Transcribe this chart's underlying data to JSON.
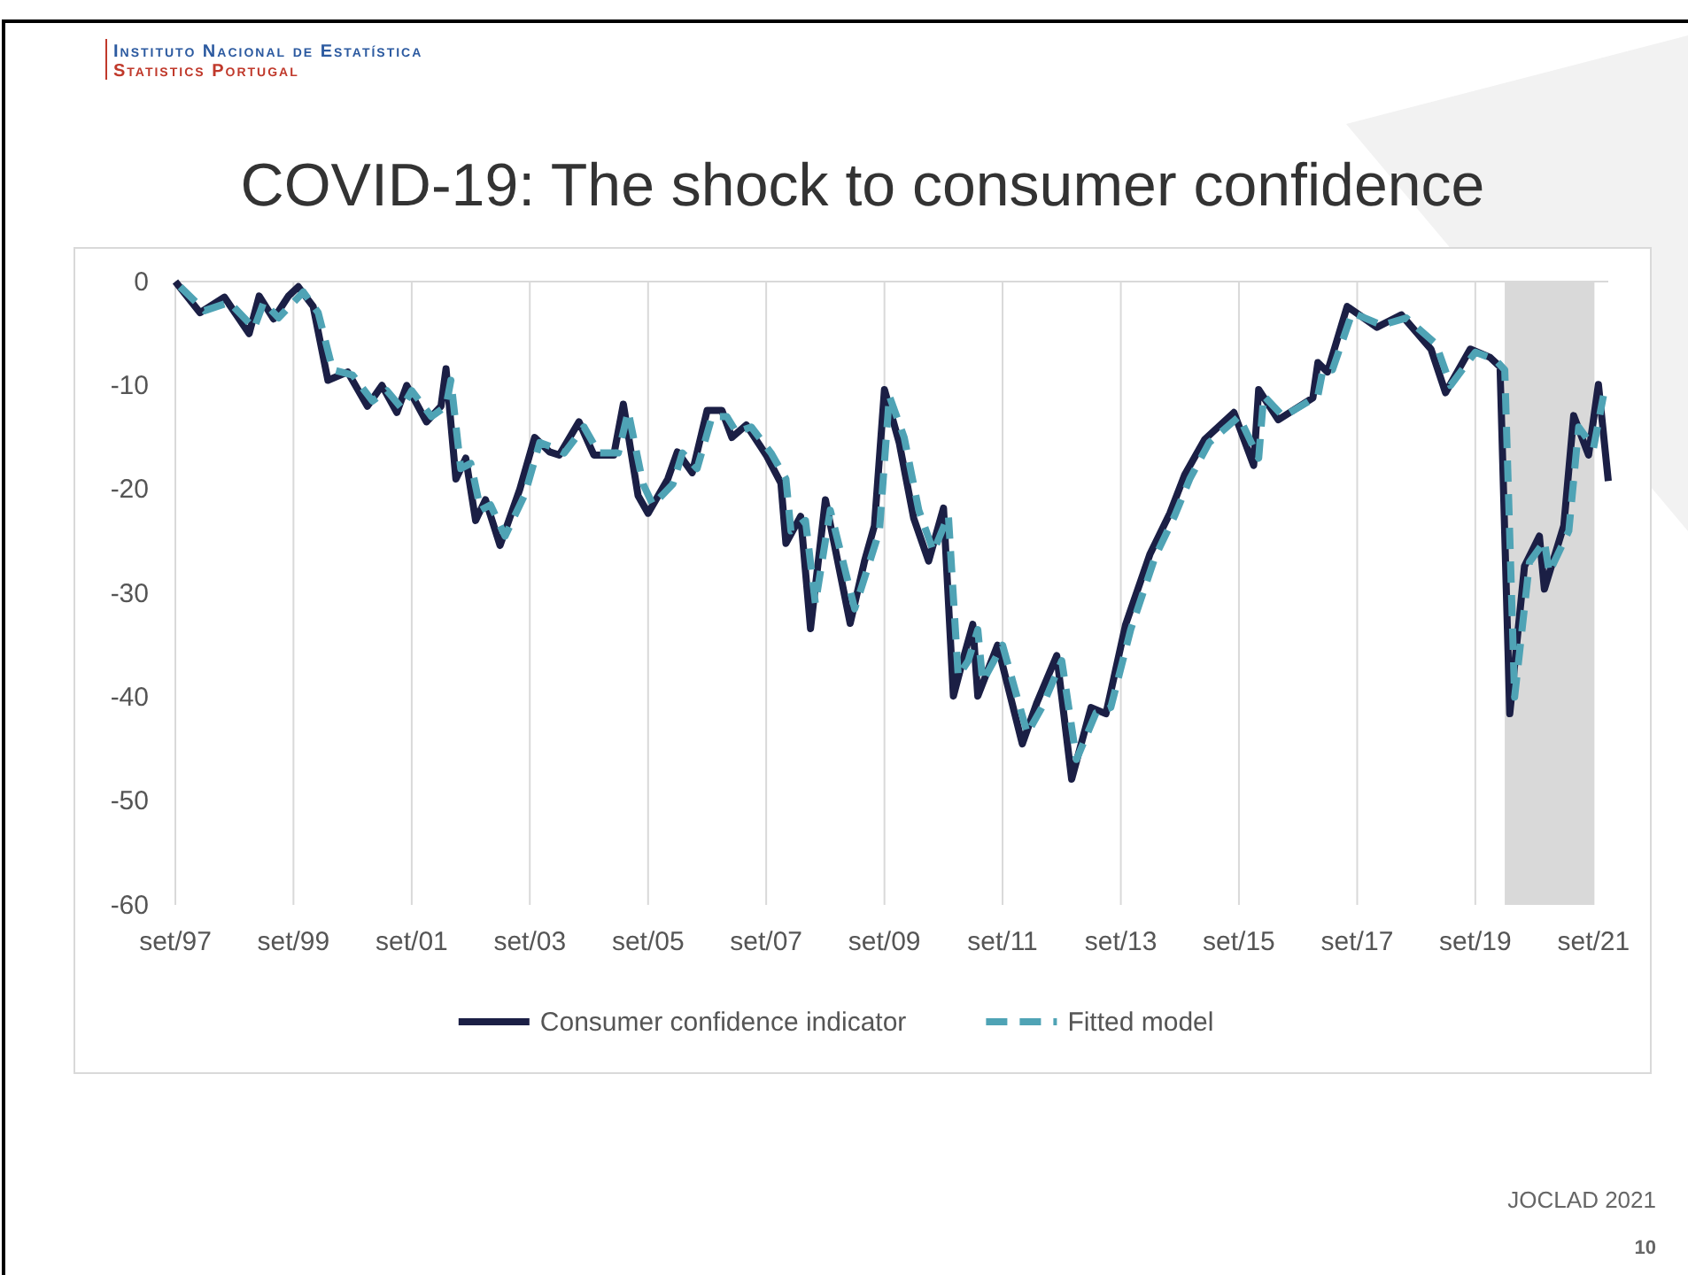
{
  "chart_data": {
    "type": "line",
    "title": "COVID-19: The shock to consumer confidence",
    "annotations": [
      "Instituto Nacional de Estatística",
      "Statistics Portugal",
      "JOCLAD 2021",
      "10"
    ],
    "xlim": [
      "1997-09",
      "2021-12"
    ],
    "xticks": [
      {
        "value": "1997-09",
        "label": "set/97"
      },
      {
        "value": "1999-09",
        "label": "set/99"
      },
      {
        "value": "2001-09",
        "label": "set/01"
      },
      {
        "value": "2003-09",
        "label": "set/03"
      },
      {
        "value": "2005-09",
        "label": "set/05"
      },
      {
        "value": "2007-09",
        "label": "set/07"
      },
      {
        "value": "2009-09",
        "label": "set/09"
      },
      {
        "value": "2011-09",
        "label": "set/11"
      },
      {
        "value": "2013-09",
        "label": "set/13"
      },
      {
        "value": "2015-09",
        "label": "set/15"
      },
      {
        "value": "2017-09",
        "label": "set/17"
      },
      {
        "value": "2019-09",
        "label": "set/19"
      },
      {
        "value": "2021-09",
        "label": "set/21"
      }
    ],
    "ylim": [
      -60,
      0
    ],
    "yticks": [
      -60,
      -50,
      -40,
      -30,
      -20,
      -10,
      0
    ],
    "grid": "x",
    "legend": "bottom",
    "bands": [
      {
        "axis": "x",
        "from": "2020-03",
        "to": "2021-09",
        "color": "#d9d9d9"
      }
    ],
    "series": [
      {
        "name": "Consumer confidence indicator",
        "color": "#1b1f45",
        "line_style": "solid",
        "x": [
          "1997-09",
          "1998-02",
          "1998-07",
          "1998-12",
          "1999-02",
          "1999-05",
          "1999-08",
          "1999-10",
          "2000-01",
          "2000-04",
          "2000-08",
          "2000-12",
          "2001-03",
          "2001-06",
          "2001-08",
          "2001-12",
          "2002-03",
          "2002-04",
          "2002-06",
          "2002-08",
          "2002-10",
          "2002-12",
          "2003-03",
          "2003-07",
          "2003-10",
          "2004-01",
          "2004-03",
          "2004-07",
          "2004-10",
          "2005-02",
          "2005-04",
          "2005-07",
          "2005-09",
          "2006-01",
          "2006-03",
          "2006-06",
          "2006-09",
          "2006-12",
          "2007-02",
          "2007-05",
          "2007-09",
          "2007-12",
          "2008-01",
          "2008-04",
          "2008-06",
          "2008-09",
          "2009-02",
          "2009-05",
          "2009-07",
          "2009-09",
          "2009-12",
          "2010-03",
          "2010-06",
          "2010-09",
          "2010-11",
          "2011-01",
          "2011-03",
          "2011-04",
          "2011-08",
          "2012-01",
          "2012-04",
          "2012-08",
          "2012-11",
          "2013-03",
          "2013-06",
          "2013-10",
          "2014-03",
          "2014-07",
          "2014-10",
          "2015-02",
          "2015-08",
          "2015-12",
          "2016-01",
          "2016-05",
          "2016-12",
          "2017-01",
          "2017-03",
          "2017-07",
          "2018-01",
          "2018-06",
          "2018-12",
          "2019-03",
          "2019-08",
          "2019-12",
          "2020-02",
          "2020-04",
          "2020-07",
          "2020-10",
          "2020-11",
          "2021-03",
          "2021-05",
          "2021-08",
          "2021-10",
          "2021-12"
        ],
        "values": [
          0,
          -3,
          -1.5,
          -5,
          -1.4,
          -3.6,
          -1.4,
          -0.5,
          -2.4,
          -9.5,
          -8.7,
          -12,
          -10,
          -12.6,
          -10,
          -13.5,
          -12,
          -8.4,
          -19,
          -17,
          -23,
          -21,
          -25.4,
          -20,
          -15,
          -16.4,
          -16.7,
          -13.5,
          -16.7,
          -16.7,
          -11.8,
          -20.6,
          -22.3,
          -19,
          -16.4,
          -18.4,
          -12.4,
          -12.4,
          -15,
          -13.8,
          -16.7,
          -19.4,
          -25.2,
          -22.6,
          -33.4,
          -21,
          -32.9,
          -26.9,
          -23.5,
          -10.4,
          -15.5,
          -22.8,
          -26.9,
          -21.8,
          -39.9,
          -36.3,
          -33,
          -39.9,
          -35,
          -44.5,
          -40.5,
          -36,
          -47.9,
          -41,
          -41.6,
          -33,
          -26.2,
          -22.3,
          -18.6,
          -15.2,
          -12.6,
          -17.7,
          -10.4,
          -13.3,
          -11.2,
          -7.8,
          -8.7,
          -2.4,
          -4.4,
          -3.2,
          -6.5,
          -10.7,
          -6.5,
          -7.3,
          -8.2,
          -41.6,
          -27.4,
          -24.5,
          -29.6,
          -23.5,
          -12.9,
          -16.7,
          -9.9,
          -19.2
        ]
      },
      {
        "name": "Fitted model",
        "color": "#4fa3b5",
        "line_style": "dashed",
        "x": [
          "1997-10",
          "1998-03",
          "1998-08",
          "1999-01",
          "1999-03",
          "1999-06",
          "1999-09",
          "1999-11",
          "2000-02",
          "2000-05",
          "2000-09",
          "2001-01",
          "2001-04",
          "2001-07",
          "2001-09",
          "2002-01",
          "2002-04",
          "2002-05",
          "2002-07",
          "2002-09",
          "2002-11",
          "2003-01",
          "2003-04",
          "2003-08",
          "2003-11",
          "2004-02",
          "2004-04",
          "2004-08",
          "2004-11",
          "2005-03",
          "2005-05",
          "2005-08",
          "2005-10",
          "2006-02",
          "2006-04",
          "2006-07",
          "2006-10",
          "2007-01",
          "2007-03",
          "2007-06",
          "2007-10",
          "2008-01",
          "2008-02",
          "2008-05",
          "2008-07",
          "2008-10",
          "2009-03",
          "2009-06",
          "2009-08",
          "2009-10",
          "2010-01",
          "2010-04",
          "2010-07",
          "2010-10",
          "2010-12",
          "2011-02",
          "2011-04",
          "2011-05",
          "2011-09",
          "2012-02",
          "2012-05",
          "2012-09",
          "2012-12",
          "2013-04",
          "2013-07",
          "2013-11",
          "2014-04",
          "2014-08",
          "2014-11",
          "2015-03",
          "2015-09",
          "2016-01",
          "2016-02",
          "2016-06",
          "2017-01",
          "2017-02",
          "2017-04",
          "2017-08",
          "2018-02",
          "2018-07",
          "2019-01",
          "2019-04",
          "2019-09",
          "2020-01",
          "2020-03",
          "2020-05",
          "2020-08",
          "2020-11",
          "2020-12",
          "2021-04",
          "2021-06",
          "2021-09",
          "2021-11"
        ],
        "values": [
          -0.5,
          -2.8,
          -2,
          -4.5,
          -2,
          -3.5,
          -2,
          -1,
          -3,
          -8.5,
          -9,
          -11.5,
          -10.5,
          -12.2,
          -10.5,
          -13,
          -12,
          -9.5,
          -18,
          -17.5,
          -22,
          -21.5,
          -24.5,
          -20.5,
          -15.5,
          -16,
          -16.5,
          -14,
          -16.5,
          -16.5,
          -12.5,
          -19.5,
          -21.5,
          -19.5,
          -16.5,
          -18,
          -13,
          -13,
          -14.5,
          -14,
          -16.5,
          -19,
          -24,
          -23,
          -31,
          -22,
          -31.5,
          -27,
          -24,
          -11,
          -15,
          -22,
          -26,
          -22.5,
          -38,
          -36.5,
          -33.5,
          -38.5,
          -35,
          -43.5,
          -41,
          -36.5,
          -46,
          -41.5,
          -41,
          -33.5,
          -26.5,
          -22.5,
          -19,
          -15.5,
          -13,
          -17,
          -11,
          -13,
          -11,
          -8.5,
          -8.5,
          -3,
          -4.2,
          -3.5,
          -6,
          -10,
          -6.8,
          -7.5,
          -8.5,
          -40,
          -27,
          -25,
          -28,
          -24,
          -14,
          -16,
          -11
        ]
      }
    ]
  }
}
